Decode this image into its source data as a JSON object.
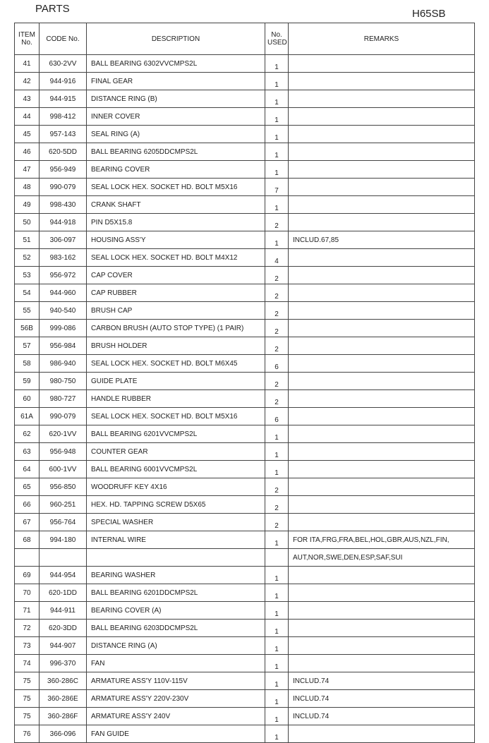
{
  "header": {
    "title": "PARTS",
    "model": "H65SB"
  },
  "table": {
    "columns": [
      "ITEM No.",
      "CODE No.",
      "DESCRIPTION",
      "No. USED",
      "REMARKS"
    ],
    "rows": [
      {
        "item": "41",
        "code": "630-2VV",
        "description": "BALL BEARING 6302VVCMPS2L",
        "used": 1
      },
      {
        "item": "42",
        "code": "944-916",
        "description": "FINAL GEAR",
        "used": 1
      },
      {
        "item": "43",
        "code": "944-915",
        "description": "DISTANCE RING (B)",
        "used": 1
      },
      {
        "item": "44",
        "code": "998-412",
        "description": "INNER COVER",
        "used": 1
      },
      {
        "item": "45",
        "code": "957-143",
        "description": "SEAL RING (A)",
        "used": 1
      },
      {
        "item": "46",
        "code": "620-5DD",
        "description": "BALL BEARING 6205DDCMPS2L",
        "used": 1
      },
      {
        "item": "47",
        "code": "956-949",
        "description": "BEARING COVER",
        "used": 1
      },
      {
        "item": "48",
        "code": "990-079",
        "description": "SEAL LOCK HEX. SOCKET HD. BOLT M5X16",
        "used": 7
      },
      {
        "item": "49",
        "code": "998-430",
        "description": "CRANK SHAFT",
        "used": 1
      },
      {
        "item": "50",
        "code": "944-918",
        "description": "PIN D5X15.8",
        "used": 2
      },
      {
        "item": "51",
        "code": "306-097",
        "description": "HOUSING ASS'Y",
        "used": 1,
        "remarks": "INCLUD.67,85"
      },
      {
        "item": "52",
        "code": "983-162",
        "description": "SEAL LOCK HEX. SOCKET HD. BOLT M4X12",
        "used": 4
      },
      {
        "item": "53",
        "code": "956-972",
        "description": "CAP COVER",
        "used": 2
      },
      {
        "item": "54",
        "code": "944-960",
        "description": "CAP RUBBER",
        "used": 2
      },
      {
        "item": "55",
        "code": "940-540",
        "description": "BRUSH CAP",
        "used": 2
      },
      {
        "item": "56B",
        "code": "999-086",
        "description": "CARBON BRUSH (AUTO STOP TYPE) (1 PAIR)",
        "used": 2
      },
      {
        "item": "57",
        "code": "956-984",
        "description": "BRUSH HOLDER",
        "used": 2
      },
      {
        "item": "58",
        "code": "986-940",
        "description": "SEAL LOCK HEX. SOCKET HD. BOLT M6X45",
        "used": 6
      },
      {
        "item": "59",
        "code": "980-750",
        "description": "GUIDE PLATE",
        "used": 2
      },
      {
        "item": "60",
        "code": "980-727",
        "description": "HANDLE RUBBER",
        "used": 2
      },
      {
        "item": "61A",
        "code": "990-079",
        "description": "SEAL LOCK HEX. SOCKET HD. BOLT M5X16",
        "used": 6
      },
      {
        "item": "62",
        "code": "620-1VV",
        "description": "BALL BEARING 6201VVCMPS2L",
        "used": 1
      },
      {
        "item": "63",
        "code": "956-948",
        "description": "COUNTER GEAR",
        "used": 1
      },
      {
        "item": "64",
        "code": "600-1VV",
        "description": "BALL BEARING 6001VVCMPS2L",
        "used": 1
      },
      {
        "item": "65",
        "code": "956-850",
        "description": "WOODRUFF KEY 4X16",
        "used": 2
      },
      {
        "item": "66",
        "code": "960-251",
        "description": "HEX. HD. TAPPING SCREW D5X65",
        "used": 2
      },
      {
        "item": "67",
        "code": "956-764",
        "description": "SPECIAL WASHER",
        "used": 2
      },
      {
        "item": "68",
        "code": "994-180",
        "description": "INTERNAL WIRE",
        "used": 1,
        "remarks": "FOR ITA,FRG,FRA,BEL,HOL,GBR,AUS,NZL,FIN,"
      },
      {
        "remarks": "AUT,NOR,SWE,DEN,ESP,SAF,SUI"
      },
      {
        "item": "69",
        "code": "944-954",
        "description": "BEARING WASHER",
        "used": 1
      },
      {
        "item": "70",
        "code": "620-1DD",
        "description": "BALL BEARING 6201DDCMPS2L",
        "used": 1
      },
      {
        "item": "71",
        "code": "944-911",
        "description": "BEARING COVER (A)",
        "used": 1
      },
      {
        "item": "72",
        "code": "620-3DD",
        "description": "BALL BEARING 6203DDCMPS2L",
        "used": 1
      },
      {
        "item": "73",
        "code": "944-907",
        "description": "DISTANCE RING (A)",
        "used": 1
      },
      {
        "item": "74",
        "code": "996-370",
        "description": "FAN",
        "used": 1
      },
      {
        "item": "75",
        "code": "360-286C",
        "description": "ARMATURE ASS'Y 110V-115V",
        "used": 1,
        "remarks": "INCLUD.74"
      },
      {
        "item": "75",
        "code": "360-286E",
        "description": "ARMATURE ASS'Y 220V-230V",
        "used": 1,
        "remarks": "INCLUD.74"
      },
      {
        "item": "75",
        "code": "360-286F",
        "description": "ARMATURE ASS'Y 240V",
        "used": 1,
        "remarks": "INCLUD.74"
      },
      {
        "item": "76",
        "code": "366-096",
        "description": "FAN GUIDE",
        "used": 1
      }
    ]
  }
}
